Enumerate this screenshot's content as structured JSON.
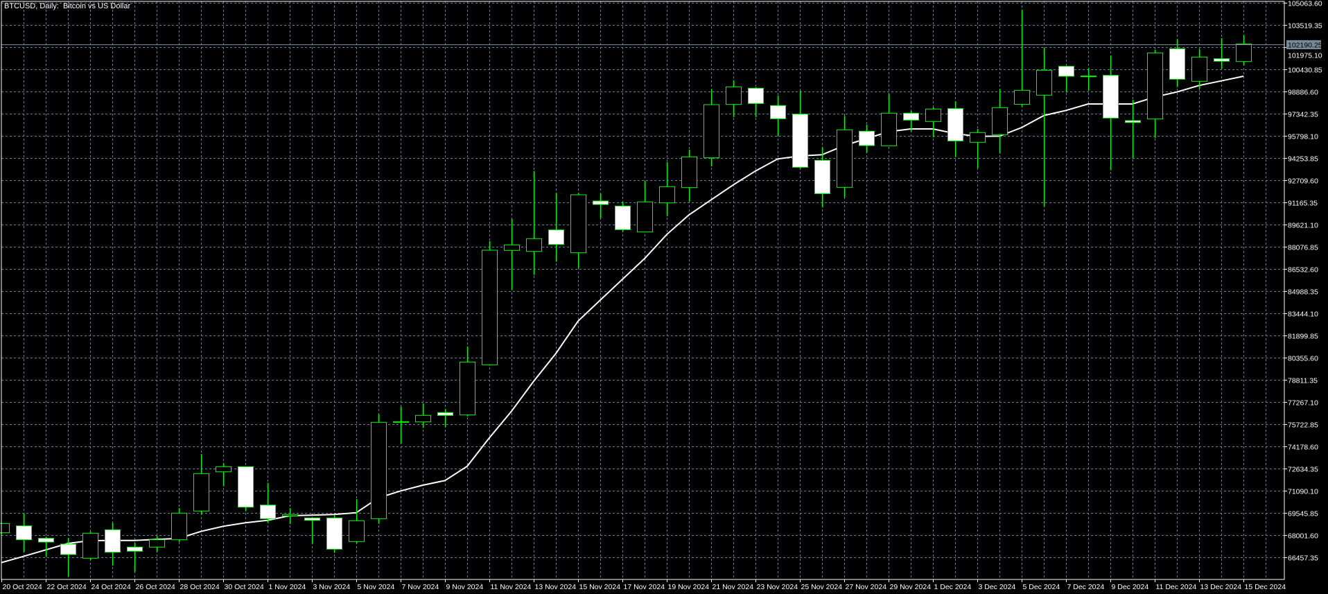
{
  "header": {
    "title": "BTCUSD, Daily:  Bitcoin vs US Dollar"
  },
  "colors": {
    "background": "#000000",
    "grid": "#6E7F92",
    "candle_outline": "#00FF00",
    "bull_body": "#000000",
    "bear_body": "#FFFFFF",
    "ma_line": "#FFFFFF",
    "price_line": "#778899",
    "axis": "#FFFFFF"
  },
  "chart_data": {
    "type": "candlestick",
    "title": "BTCUSD, Daily:  Bitcoin vs US Dollar",
    "ylim": [
      64913.1,
      105160.1
    ],
    "grid": true,
    "current_price": "102190.25",
    "y_ticks": [
      "105063.60",
      "103519.35",
      "101975.10",
      "100430.85",
      "98886.60",
      "97342.35",
      "95798.10",
      "94253.85",
      "92709.60",
      "91165.35",
      "89621.10",
      "88076.85",
      "86532.60",
      "84988.35",
      "83444.10",
      "81899.85",
      "80355.60",
      "78811.35",
      "77267.10",
      "75722.85",
      "74178.60",
      "72634.35",
      "71090.10",
      "69545.85",
      "68001.60",
      "66457.35"
    ],
    "x_ticks": [
      "20 Oct 2024",
      "22 Oct 2024",
      "24 Oct 2024",
      "26 Oct 2024",
      "28 Oct 2024",
      "30 Oct 2024",
      "1 Nov 2024",
      "3 Nov 2024",
      "5 Nov 2024",
      "7 Nov 2024",
      "9 Nov 2024",
      "11 Nov 2024",
      "13 Nov 2024",
      "15 Nov 2024",
      "17 Nov 2024",
      "19 Nov 2024",
      "21 Nov 2024",
      "23 Nov 2024",
      "25 Nov 2024",
      "27 Nov 2024",
      "29 Nov 2024",
      "1 Dec 2024",
      "3 Dec 2024",
      "5 Dec 2024",
      "7 Dec 2024",
      "9 Dec 2024",
      "11 Dec 2024",
      "13 Dec 2024",
      "15 Dec 2024"
    ],
    "candles": [
      {
        "d": "20 Oct 2024",
        "o": 68161,
        "h": 68850,
        "l": 68100,
        "c": 68807
      },
      {
        "d": "21 Oct 2024",
        "o": 68643,
        "h": 69531,
        "l": 66795,
        "c": 67678
      },
      {
        "d": "22 Oct 2024",
        "o": 67775,
        "h": 67890,
        "l": 66472,
        "c": 67519
      },
      {
        "d": "23 Oct 2024",
        "o": 67374,
        "h": 67808,
        "l": 65120,
        "c": 66650
      },
      {
        "d": "24 Oct 2024",
        "o": 66394,
        "h": 68257,
        "l": 66250,
        "c": 68132
      },
      {
        "d": "25 Oct 2024",
        "o": 68373,
        "h": 68856,
        "l": 65878,
        "c": 66810
      },
      {
        "d": "26 Oct 2024",
        "o": 67166,
        "h": 67456,
        "l": 65444,
        "c": 66877
      },
      {
        "d": "27 Oct 2024",
        "o": 67166,
        "h": 67939,
        "l": 66810,
        "c": 67678
      },
      {
        "d": "28 Oct 2024",
        "o": 67678,
        "h": 69883,
        "l": 67533,
        "c": 69531
      },
      {
        "d": "29 Oct 2024",
        "o": 69676,
        "h": 73648,
        "l": 69415,
        "c": 72282
      },
      {
        "d": "30 Oct 2024",
        "o": 72407,
        "h": 73006,
        "l": 71394,
        "c": 72764
      },
      {
        "d": "31 Oct 2024",
        "o": 72764,
        "h": 72764,
        "l": 69657,
        "c": 69946
      },
      {
        "d": "1 Nov 2024",
        "o": 70091,
        "h": 71635,
        "l": 68855,
        "c": 69145
      },
      {
        "d": "2 Nov 2024",
        "o": 69338,
        "h": 69883,
        "l": 68773,
        "c": 69435
      },
      {
        "d": "3 Nov 2024",
        "o": 69193,
        "h": 69193,
        "l": 67374,
        "c": 69029
      },
      {
        "d": "4 Nov 2024",
        "o": 69193,
        "h": 69386,
        "l": 66761,
        "c": 67022
      },
      {
        "d": "5 Nov 2024",
        "o": 67552,
        "h": 70496,
        "l": 67408,
        "c": 69000
      },
      {
        "d": "6 Nov 2024",
        "o": 69145,
        "h": 76413,
        "l": 68788,
        "c": 75853
      },
      {
        "d": "7 Nov 2024",
        "o": 75850,
        "h": 76943,
        "l": 74371,
        "c": 75901
      },
      {
        "d": "8 Nov 2024",
        "o": 75882,
        "h": 77170,
        "l": 75467,
        "c": 76336
      },
      {
        "d": "9 Nov 2024",
        "o": 76528,
        "h": 76784,
        "l": 75530,
        "c": 76336
      },
      {
        "d": "10 Nov 2024",
        "o": 76365,
        "h": 81128,
        "l": 76268,
        "c": 80052
      },
      {
        "d": "11 Nov 2024",
        "o": 79858,
        "h": 88462,
        "l": 79800,
        "c": 87835
      },
      {
        "d": "12 Nov 2024",
        "o": 87821,
        "h": 90007,
        "l": 85070,
        "c": 88207
      },
      {
        "d": "13 Nov 2024",
        "o": 87754,
        "h": 93351,
        "l": 86113,
        "c": 88642
      },
      {
        "d": "14 Nov 2024",
        "o": 89249,
        "h": 91826,
        "l": 87030,
        "c": 88236
      },
      {
        "d": "15 Nov 2024",
        "o": 87657,
        "h": 91826,
        "l": 86595,
        "c": 91696
      },
      {
        "d": "16 Nov 2024",
        "o": 91262,
        "h": 91793,
        "l": 90056,
        "c": 91020
      },
      {
        "d": "17 Nov 2024",
        "o": 90910,
        "h": 91228,
        "l": 89124,
        "c": 89269
      },
      {
        "d": "18 Nov 2024",
        "o": 89105,
        "h": 92676,
        "l": 89105,
        "c": 91199
      },
      {
        "d": "19 Nov 2024",
        "o": 91132,
        "h": 93964,
        "l": 90214,
        "c": 92261
      },
      {
        "d": "20 Nov 2024",
        "o": 92194,
        "h": 94833,
        "l": 91228,
        "c": 94336
      },
      {
        "d": "21 Nov 2024",
        "o": 94268,
        "h": 99046,
        "l": 93675,
        "c": 97970
      },
      {
        "d": "22 Nov 2024",
        "o": 97984,
        "h": 99658,
        "l": 97101,
        "c": 99210
      },
      {
        "d": "23 Nov 2024",
        "o": 99113,
        "h": 99176,
        "l": 97101,
        "c": 98052
      },
      {
        "d": "24 Nov 2024",
        "o": 97907,
        "h": 98597,
        "l": 95764,
        "c": 96990
      },
      {
        "d": "25 Nov 2024",
        "o": 97308,
        "h": 98949,
        "l": 93515,
        "c": 93612
      },
      {
        "d": "26 Nov 2024",
        "o": 94094,
        "h": 95012,
        "l": 90813,
        "c": 91778
      },
      {
        "d": "27 Nov 2024",
        "o": 92213,
        "h": 97184,
        "l": 91503,
        "c": 96218
      },
      {
        "d": "28 Nov 2024",
        "o": 96122,
        "h": 96570,
        "l": 94606,
        "c": 95123
      },
      {
        "d": "29 Nov 2024",
        "o": 95108,
        "h": 98727,
        "l": 95108,
        "c": 97376
      },
      {
        "d": "30 Nov 2024",
        "o": 97376,
        "h": 97535,
        "l": 96088,
        "c": 96893
      },
      {
        "d": "1 Dec 2024",
        "o": 96797,
        "h": 97777,
        "l": 95687,
        "c": 97666
      },
      {
        "d": "2 Dec 2024",
        "o": 97695,
        "h": 98211,
        "l": 94350,
        "c": 95446
      },
      {
        "d": "3 Dec 2024",
        "o": 95349,
        "h": 96281,
        "l": 93544,
        "c": 96025
      },
      {
        "d": "4 Dec 2024",
        "o": 95880,
        "h": 99046,
        "l": 94558,
        "c": 97762
      },
      {
        "d": "5 Dec 2024",
        "o": 97997,
        "h": 104581,
        "l": 97810,
        "c": 98969
      },
      {
        "d": "6 Dec 2024",
        "o": 98631,
        "h": 101927,
        "l": 90890,
        "c": 100368
      },
      {
        "d": "7 Dec 2024",
        "o": 100638,
        "h": 100660,
        "l": 98824,
        "c": 99948
      },
      {
        "d": "8 Dec 2024",
        "o": 99940,
        "h": 100527,
        "l": 98949,
        "c": 99963
      },
      {
        "d": "9 Dec 2024",
        "o": 100011,
        "h": 101396,
        "l": 93399,
        "c": 97038
      },
      {
        "d": "10 Dec 2024",
        "o": 96860,
        "h": 98307,
        "l": 94220,
        "c": 96730
      },
      {
        "d": "11 Dec 2024",
        "o": 96971,
        "h": 101797,
        "l": 95653,
        "c": 101575
      },
      {
        "d": "12 Dec 2024",
        "o": 101864,
        "h": 102520,
        "l": 99191,
        "c": 99741
      },
      {
        "d": "13 Dec 2024",
        "o": 99596,
        "h": 101830,
        "l": 99065,
        "c": 101285
      },
      {
        "d": "14 Dec 2024",
        "o": 101169,
        "h": 102602,
        "l": 100465,
        "c": 100995
      },
      {
        "d": "15 Dec 2024",
        "o": 100976,
        "h": 102810,
        "l": 100706,
        "c": 102190.25
      }
    ],
    "moving_average": [
      66085,
      66519,
      66973,
      67421,
      67615,
      67629,
      67629,
      67697,
      67774,
      68256,
      68614,
      68855,
      69029,
      69352,
      69386,
      69434,
      69560,
      70592,
      71075,
      71476,
      71799,
      72793,
      74772,
      76625,
      78715,
      80645,
      82899,
      84361,
      85809,
      87256,
      88931,
      90297,
      91344,
      92387,
      93352,
      94192,
      94399,
      94481,
      95122,
      95605,
      96088,
      96281,
      96281,
      95957,
      95764,
      95779,
      96377,
      97212,
      97569,
      98018,
      98018,
      98018,
      98500,
      98853,
      99307,
      99625,
      99948
    ]
  }
}
